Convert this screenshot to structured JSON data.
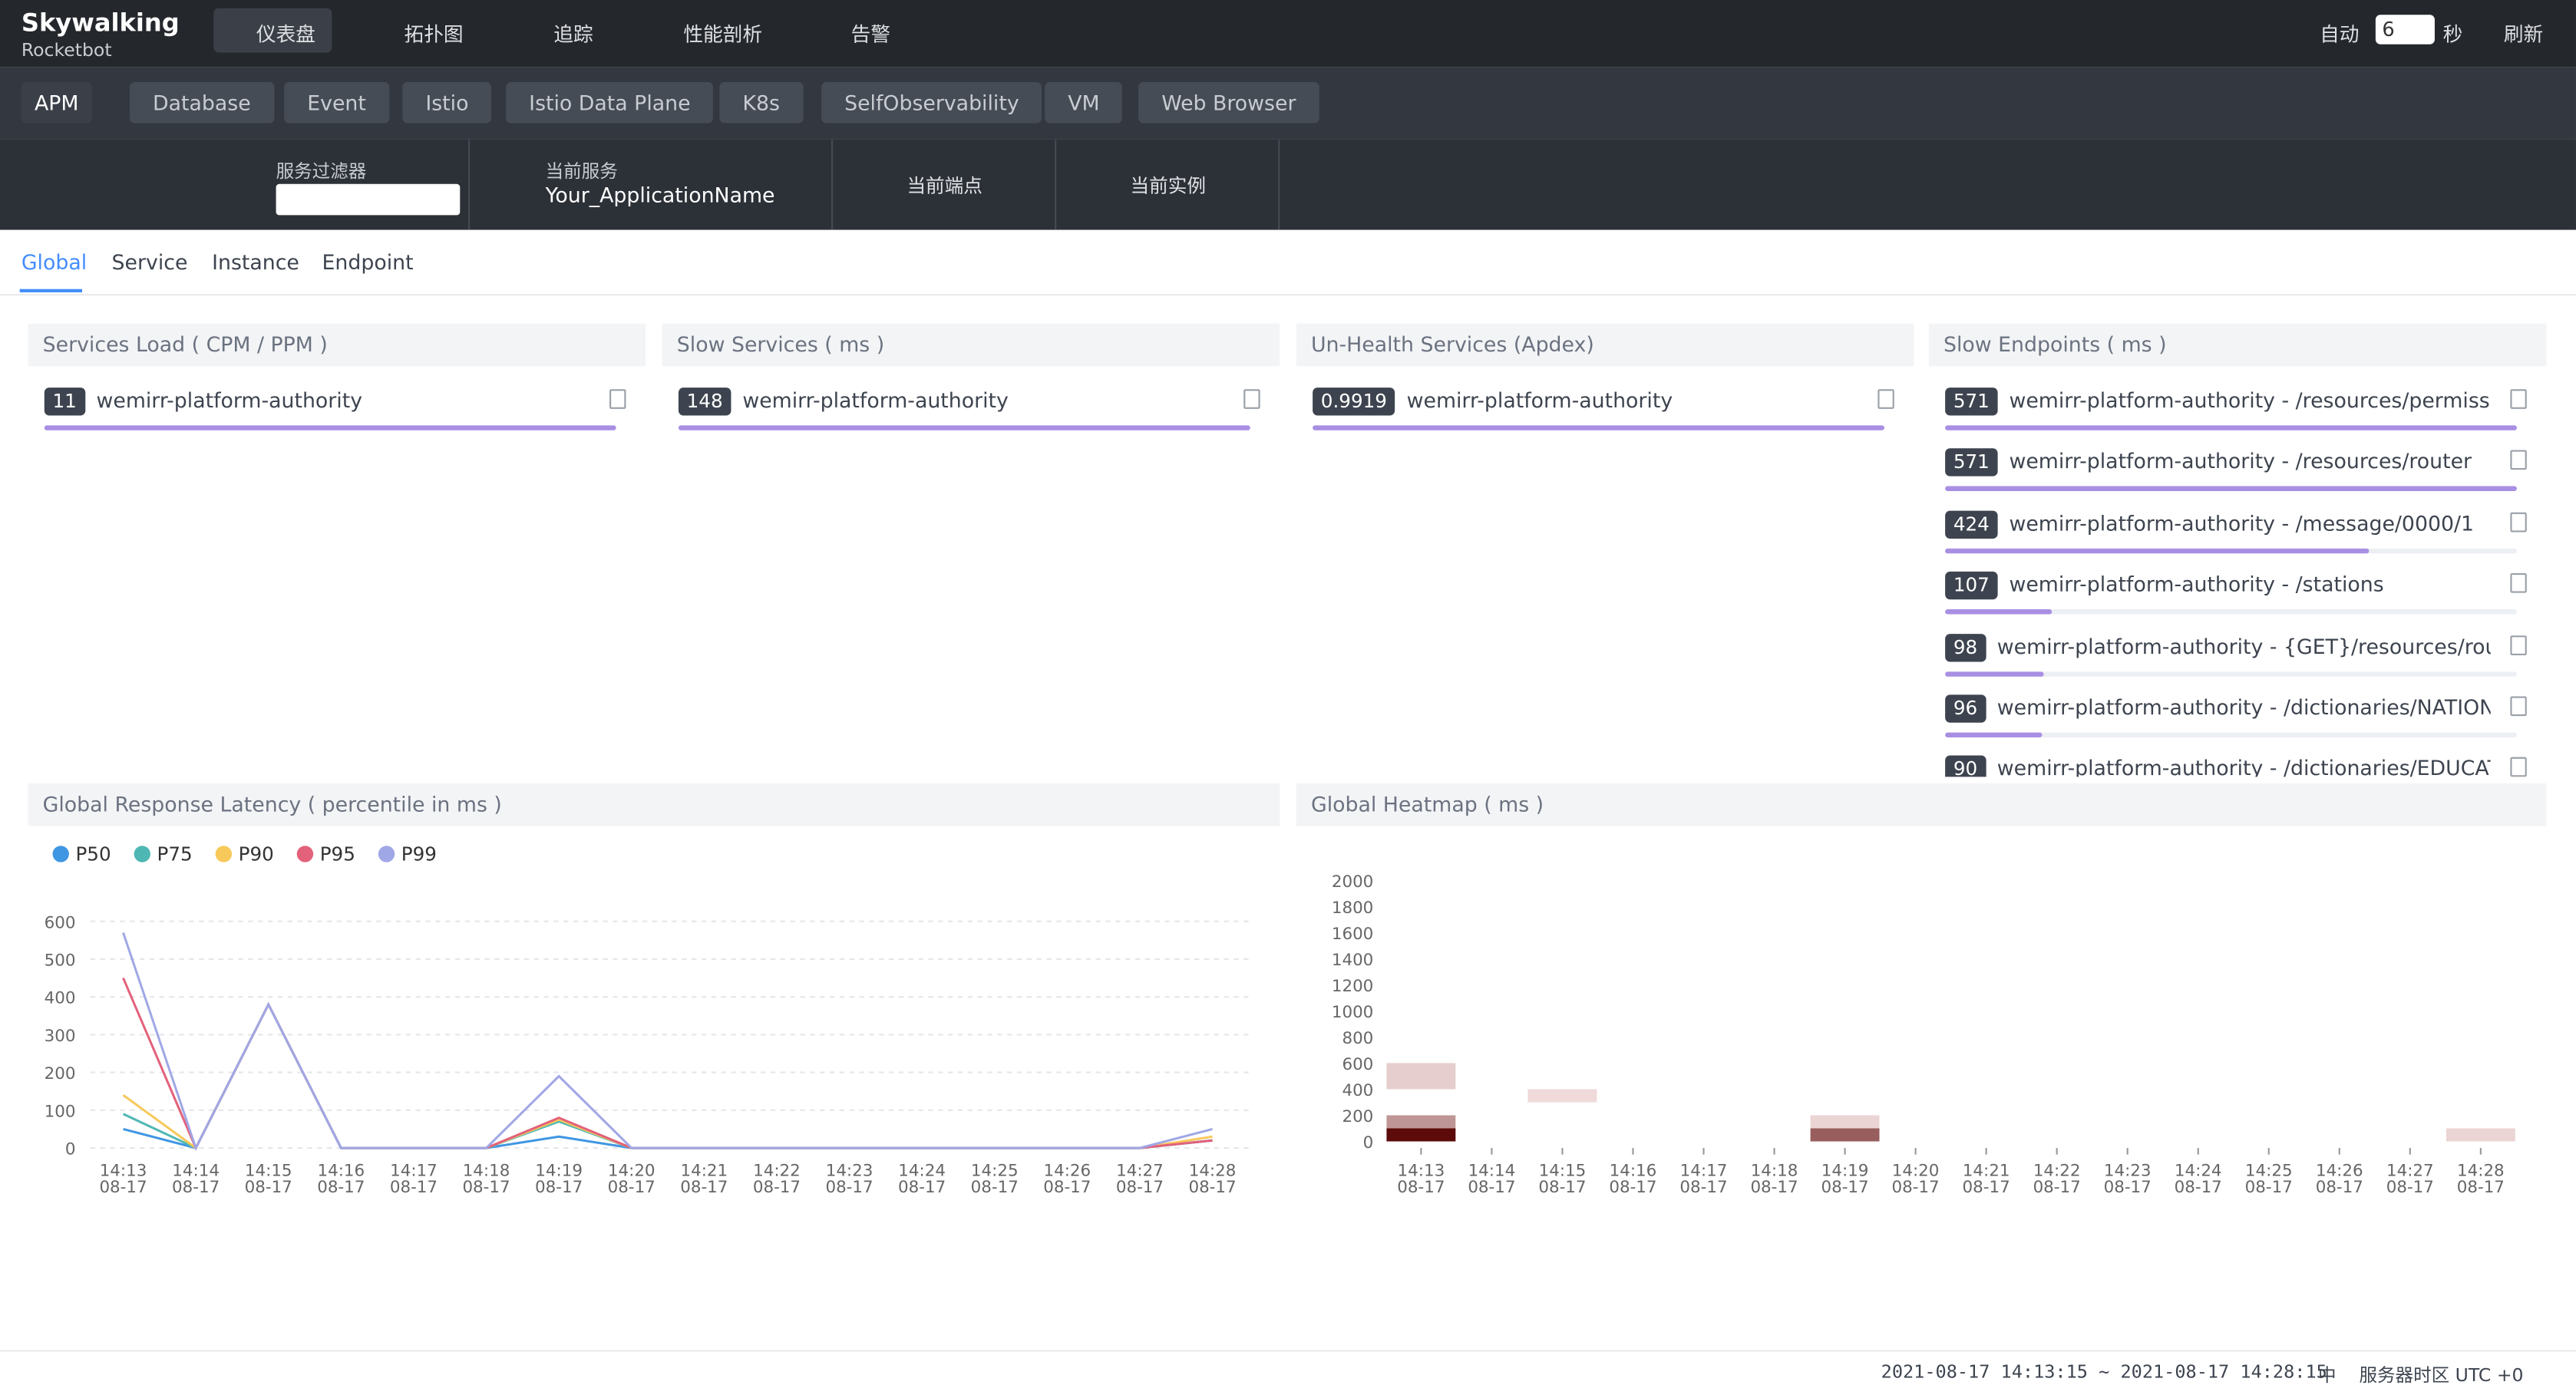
{
  "nav": {
    "logo": "Skywalking",
    "logo_sub": "Rocketbot",
    "items": [
      "仪表盘",
      "拓扑图",
      "追踪",
      "性能剖析",
      "告警"
    ],
    "auto": "自动",
    "interval": "6",
    "unit": "秒",
    "refresh": "刷新"
  },
  "tabs": [
    "APM",
    "Database",
    "Event",
    "Istio",
    "Istio Data Plane",
    "K8s",
    "SelfObservability",
    "VM",
    "Web Browser"
  ],
  "toolbar": {
    "filter_label": "服务过滤器",
    "service_label": "当前服务",
    "service_value": "Your_ApplicationName",
    "endpoint_label": "当前端点",
    "instance_label": "当前实例"
  },
  "subtabs": [
    "Global",
    "Service",
    "Instance",
    "Endpoint"
  ],
  "lists": [
    {
      "title": "Services Load ( CPM / PPM )",
      "items": [
        {
          "value": 11,
          "name": "wemirr-platform-authority"
        }
      ]
    },
    {
      "title": "Slow Services ( ms )",
      "items": [
        {
          "value": 148,
          "name": "wemirr-platform-authority"
        }
      ]
    },
    {
      "title": "Un-Health Services (Apdex)",
      "items": [
        {
          "value": 0.9919,
          "name": "wemirr-platform-authority"
        }
      ]
    },
    {
      "title": "Slow Endpoints ( ms )",
      "items": [
        {
          "value": 571,
          "name": "wemirr-platform-authority - /resources/permissions"
        },
        {
          "value": 571,
          "name": "wemirr-platform-authority - /resources/router"
        },
        {
          "value": 424,
          "name": "wemirr-platform-authority - /message/0000/1"
        },
        {
          "value": 107,
          "name": "wemirr-platform-authority - /stations"
        },
        {
          "value": 98,
          "name": "wemirr-platform-authority - {GET}/resources/router"
        },
        {
          "value": 96,
          "name": "wemirr-platform-authority - /dictionaries/NATION/I…"
        },
        {
          "value": 90,
          "name": "wemirr-platform-authority - /dictionaries/EDUCATI"
        }
      ]
    }
  ],
  "chart_data": [
    {
      "type": "line",
      "title": "Global Response Latency ( percentile in ms )",
      "categories": [
        "14:13",
        "14:14",
        "14:15",
        "14:16",
        "14:17",
        "14:18",
        "14:19",
        "14:20",
        "14:21",
        "14:22",
        "14:23",
        "14:24",
        "14:25",
        "14:26",
        "14:27",
        "14:28"
      ],
      "category_dates": [
        "08-17",
        "08-17",
        "08-17",
        "08-17",
        "08-17",
        "08-17",
        "08-17",
        "08-17",
        "08-17",
        "08-17",
        "08-17",
        "08-17",
        "08-17",
        "08-17",
        "08-17",
        "08-17"
      ],
      "ylim": [
        0,
        600
      ],
      "yticks": [
        0,
        100,
        200,
        300,
        400,
        500,
        600
      ],
      "grid": true,
      "series": [
        {
          "name": "P50",
          "color": "#3f96e3",
          "values": [
            50,
            0,
            380,
            0,
            0,
            0,
            30,
            0,
            0,
            0,
            0,
            0,
            0,
            0,
            0,
            20
          ]
        },
        {
          "name": "P75",
          "color": "#4fb7b3",
          "values": [
            90,
            0,
            380,
            0,
            0,
            0,
            70,
            0,
            0,
            0,
            0,
            0,
            0,
            0,
            0,
            20
          ]
        },
        {
          "name": "P90",
          "color": "#f7c85a",
          "values": [
            140,
            0,
            380,
            0,
            0,
            0,
            75,
            0,
            0,
            0,
            0,
            0,
            0,
            0,
            0,
            30
          ]
        },
        {
          "name": "P95",
          "color": "#e3617a",
          "values": [
            450,
            0,
            380,
            0,
            0,
            0,
            80,
            0,
            0,
            0,
            0,
            0,
            0,
            0,
            0,
            20
          ]
        },
        {
          "name": "P99",
          "color": "#a0a7e6",
          "values": [
            570,
            0,
            380,
            0,
            0,
            0,
            190,
            0,
            0,
            0,
            0,
            0,
            0,
            0,
            0,
            50
          ]
        }
      ]
    },
    {
      "type": "heatmap",
      "title": "Global Heatmap ( ms )",
      "categories": [
        "14:13",
        "14:14",
        "14:15",
        "14:16",
        "14:17",
        "14:18",
        "14:19",
        "14:20",
        "14:21",
        "14:22",
        "14:23",
        "14:24",
        "14:25",
        "14:26",
        "14:27",
        "14:28"
      ],
      "category_dates": [
        "08-17",
        "08-17",
        "08-17",
        "08-17",
        "08-17",
        "08-17",
        "08-17",
        "08-17",
        "08-17",
        "08-17",
        "08-17",
        "08-17",
        "08-17",
        "08-17",
        "08-17",
        "08-17"
      ],
      "ylim": [
        0,
        2000
      ],
      "yticks": [
        0,
        200,
        400,
        600,
        800,
        1000,
        1200,
        1400,
        1600,
        1800,
        2000
      ],
      "bucket_size": 100,
      "color_low": "#fbeaea",
      "color_high": "#5c0a0a",
      "cells": [
        {
          "x": 0,
          "y": 0,
          "count": 40
        },
        {
          "x": 0,
          "y": 100,
          "count": 15
        },
        {
          "x": 0,
          "y": 400,
          "count": 5
        },
        {
          "x": 0,
          "y": 500,
          "count": 5
        },
        {
          "x": 2,
          "y": 300,
          "count": 3
        },
        {
          "x": 6,
          "y": 0,
          "count": 25
        },
        {
          "x": 6,
          "y": 100,
          "count": 4
        },
        {
          "x": 15,
          "y": 0,
          "count": 4
        }
      ]
    }
  ],
  "footer": {
    "range": "2021-08-17 14:13:15 ~ 2021-08-17 14:28:15",
    "lang": "中",
    "timezone": "服务器时区 UTC +0"
  }
}
